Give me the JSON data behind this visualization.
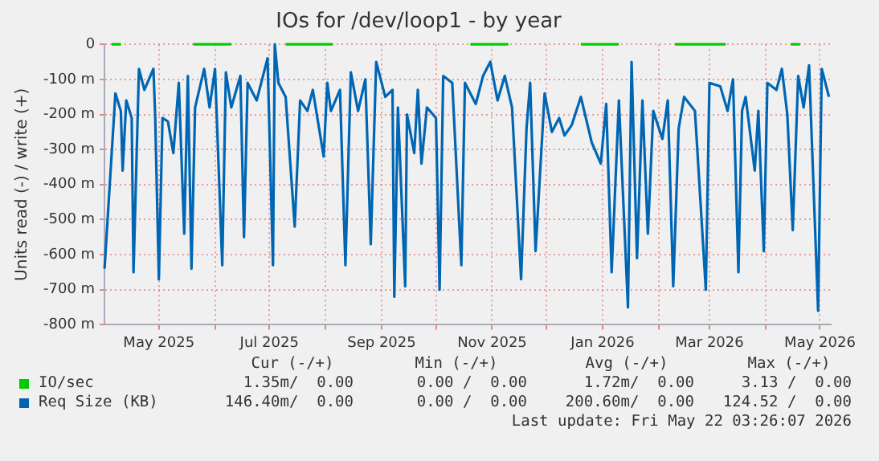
{
  "chart_data": {
    "type": "line",
    "title": "IOs for /dev/loop1 - by year",
    "ylabel": "Units read (-) / write (+)",
    "xlim": [
      "2025-04-01",
      "2026-05-07"
    ],
    "xticks": [
      {
        "value": "2025-05-01",
        "label": "May 2025"
      },
      {
        "value": "2025-06-01",
        "label": null
      },
      {
        "value": "2025-07-01",
        "label": "Jul 2025"
      },
      {
        "value": "2025-08-01",
        "label": null
      },
      {
        "value": "2025-09-01",
        "label": "Sep 2025"
      },
      {
        "value": "2025-10-01",
        "label": null
      },
      {
        "value": "2025-11-01",
        "label": "Nov 2025"
      },
      {
        "value": "2025-12-01",
        "label": null
      },
      {
        "value": "2026-01-01",
        "label": "Jan 2026"
      },
      {
        "value": "2026-02-01",
        "label": null
      },
      {
        "value": "2026-03-01",
        "label": "Mar 2026"
      },
      {
        "value": "2026-04-01",
        "label": null
      },
      {
        "value": "2026-05-01",
        "label": "May 2026"
      }
    ],
    "ylim": [
      -800,
      0
    ],
    "yticks": [
      {
        "value": -800,
        "label": "-800 m"
      },
      {
        "value": -700,
        "label": "-700 m"
      },
      {
        "value": -600,
        "label": "-600 m"
      },
      {
        "value": -500,
        "label": "-500 m"
      },
      {
        "value": -400,
        "label": "-400 m"
      },
      {
        "value": -300,
        "label": "-300 m"
      },
      {
        "value": -200,
        "label": "-200 m"
      },
      {
        "value": -100,
        "label": "-100 m"
      },
      {
        "value": 0,
        "label": "0"
      }
    ],
    "grid": true,
    "legend": "bottom",
    "marker": "none",
    "line_style": "solid",
    "series": [
      {
        "name": "IO/sec",
        "color": "#00cc00",
        "x": [
          "2025-04-05",
          "2025-04-10",
          "2025-04-12",
          "2025-05-20",
          "2025-06-10",
          "2025-06-12",
          "2025-07-10",
          "2025-08-05",
          "2025-08-07",
          "2025-10-20",
          "2025-11-10",
          "2025-11-12",
          "2025-12-20",
          "2026-01-10",
          "2026-01-12",
          "2026-02-10",
          "2026-03-10",
          "2026-03-12",
          "2026-04-15",
          "2026-04-20"
        ],
        "values": [
          0,
          0,
          null,
          0,
          0,
          null,
          0,
          0,
          null,
          0,
          0,
          null,
          0,
          0,
          null,
          0,
          0,
          null,
          0,
          0
        ]
      },
      {
        "name": "Req Size (KB)",
        "color": "#0066b3",
        "x": [
          "2025-04-01",
          "2025-04-07",
          "2025-04-10",
          "2025-04-11",
          "2025-04-13",
          "2025-04-16",
          "2025-04-17",
          "2025-04-20",
          "2025-04-23",
          "2025-04-28",
          "2025-04-29",
          "2025-05-01",
          "2025-05-03",
          "2025-05-06",
          "2025-05-09",
          "2025-05-12",
          "2025-05-15",
          "2025-05-17",
          "2025-05-19",
          "2025-05-21",
          "2025-05-26",
          "2025-05-29",
          "2025-06-01",
          "2025-06-05",
          "2025-06-07",
          "2025-06-10",
          "2025-06-15",
          "2025-06-17",
          "2025-06-19",
          "2025-06-24",
          "2025-06-30",
          "2025-07-03",
          "2025-07-04",
          "2025-07-06",
          "2025-07-10",
          "2025-07-15",
          "2025-07-18",
          "2025-07-22",
          "2025-07-25",
          "2025-07-31",
          "2025-08-02",
          "2025-08-04",
          "2025-08-09",
          "2025-08-12",
          "2025-08-15",
          "2025-08-19",
          "2025-08-23",
          "2025-08-26",
          "2025-08-29",
          "2025-09-03",
          "2025-09-07",
          "2025-09-08",
          "2025-09-10",
          "2025-09-14",
          "2025-09-15",
          "2025-09-19",
          "2025-09-21",
          "2025-09-23",
          "2025-09-26",
          "2025-10-01",
          "2025-10-03",
          "2025-10-05",
          "2025-10-10",
          "2025-10-15",
          "2025-10-17",
          "2025-10-23",
          "2025-10-27",
          "2025-10-31",
          "2025-11-04",
          "2025-11-08",
          "2025-11-12",
          "2025-11-17",
          "2025-11-20",
          "2025-11-22",
          "2025-11-25",
          "2025-11-30",
          "2025-12-04",
          "2025-12-08",
          "2025-12-11",
          "2025-12-15",
          "2025-12-20",
          "2025-12-26",
          "2025-12-31",
          "2026-01-03",
          "2026-01-06",
          "2026-01-10",
          "2026-01-15",
          "2026-01-17",
          "2026-01-20",
          "2026-01-23",
          "2026-01-26",
          "2026-01-29",
          "2026-02-03",
          "2026-02-06",
          "2026-02-09",
          "2026-02-12",
          "2026-02-15",
          "2026-02-21",
          "2026-02-27",
          "2026-03-01",
          "2026-03-07",
          "2026-03-11",
          "2026-03-14",
          "2026-03-17",
          "2026-03-19",
          "2026-03-21",
          "2026-03-26",
          "2026-03-28",
          "2026-03-31",
          "2026-04-02",
          "2026-04-07",
          "2026-04-10",
          "2026-04-13",
          "2026-04-16",
          "2026-04-19",
          "2026-04-22",
          "2026-04-25",
          "2026-04-30",
          "2026-05-02",
          "2026-05-06"
        ],
        "values": [
          -640,
          -140,
          -190,
          -360,
          -160,
          -210,
          -650,
          -70,
          -130,
          -70,
          -210,
          -670,
          -210,
          -220,
          -310,
          -110,
          -540,
          -90,
          -640,
          -180,
          -70,
          -180,
          -70,
          -630,
          -80,
          -180,
          -90,
          -550,
          -110,
          -160,
          -40,
          -630,
          0,
          -110,
          -150,
          -520,
          -160,
          -190,
          -130,
          -320,
          -110,
          -190,
          -130,
          -630,
          -80,
          -190,
          -100,
          -570,
          -50,
          -150,
          -130,
          -720,
          -180,
          -690,
          -200,
          -310,
          -130,
          -340,
          -180,
          -210,
          -700,
          -90,
          -110,
          -630,
          -110,
          -170,
          -90,
          -50,
          -160,
          -90,
          -180,
          -670,
          -240,
          -110,
          -590,
          -140,
          -250,
          -210,
          -260,
          -230,
          -150,
          -280,
          -340,
          -170,
          -650,
          -160,
          -750,
          -50,
          -610,
          -160,
          -540,
          -190,
          -270,
          -160,
          -690,
          -240,
          -150,
          -190,
          -700,
          -110,
          -120,
          -190,
          -100,
          -650,
          -190,
          -150,
          -360,
          -190,
          -590,
          -110,
          -130,
          -70,
          -200,
          -530,
          -90,
          -180,
          -60,
          -760,
          -70,
          -150
        ]
      }
    ],
    "annotations": [
      "Cur (-/+)",
      "Min (-/+)",
      "Avg (-/+)",
      "Max (-/+)",
      "1.35m/  0.00",
      "0.00 /  0.00",
      "1.72m/  0.00",
      "3.13 /  0.00",
      "146.40m/  0.00",
      "0.00 /  0.00",
      "200.60m/  0.00",
      "124.52 /  0.00",
      "Last update: Fri May 22 03:26:07 2026"
    ]
  }
}
